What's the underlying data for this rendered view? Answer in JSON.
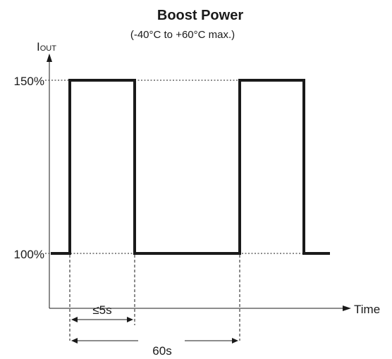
{
  "title": "Boost Power",
  "subtitle": "(-40°C to +60°C max.)",
  "axes": {
    "y_label_main": "I",
    "y_label_sub": "OUT",
    "x_label": "Time"
  },
  "levels": {
    "high": "150%",
    "low": "100%"
  },
  "dimensions": {
    "pulse_width": "≤5s",
    "period": "60s"
  }
}
